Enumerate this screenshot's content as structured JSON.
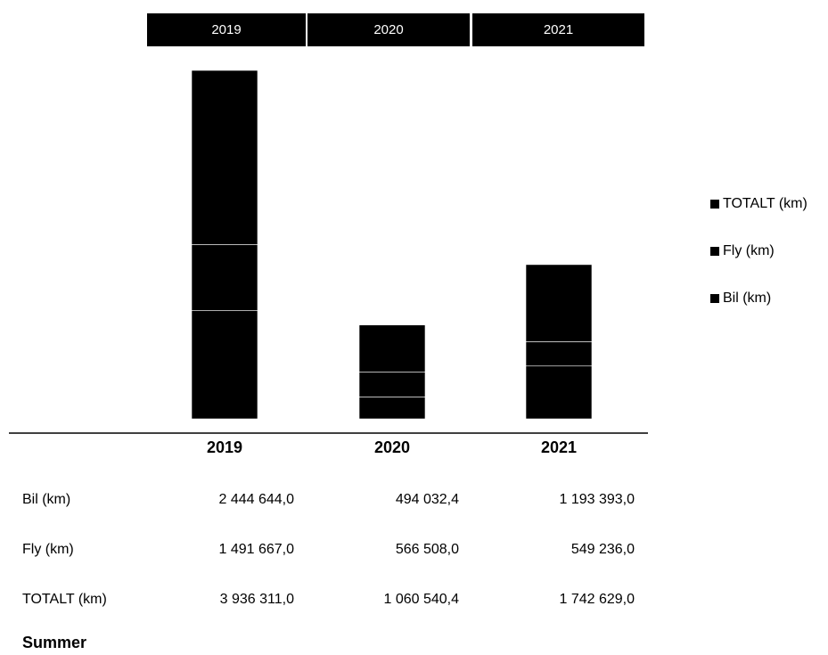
{
  "chart_data": {
    "type": "stacked-bar",
    "title": "Summer",
    "categories": [
      "2019",
      "2020",
      "2021"
    ],
    "series": [
      {
        "name": "Bil (km)",
        "color": "#000000",
        "values": [
          2444644.0,
          494032.4,
          1193393.0
        ],
        "value_labels": [
          "2 444 644,0",
          "494 032,4",
          "1 193 393,0"
        ]
      },
      {
        "name": "Fly (km)",
        "color": "#000000",
        "values": [
          1491667.0,
          566508.0,
          549236.0
        ],
        "value_labels": [
          "1 491 667,0",
          "566 508,0",
          "549 236,0"
        ]
      },
      {
        "name": "TOTALT (km)",
        "color": "#000000",
        "values": [
          3936311.0,
          1060540.4,
          1742629.0
        ],
        "value_labels": [
          "3 936 311,0",
          "1 060 540,4",
          "1 742 629,0"
        ]
      }
    ],
    "legend": "right"
  }
}
